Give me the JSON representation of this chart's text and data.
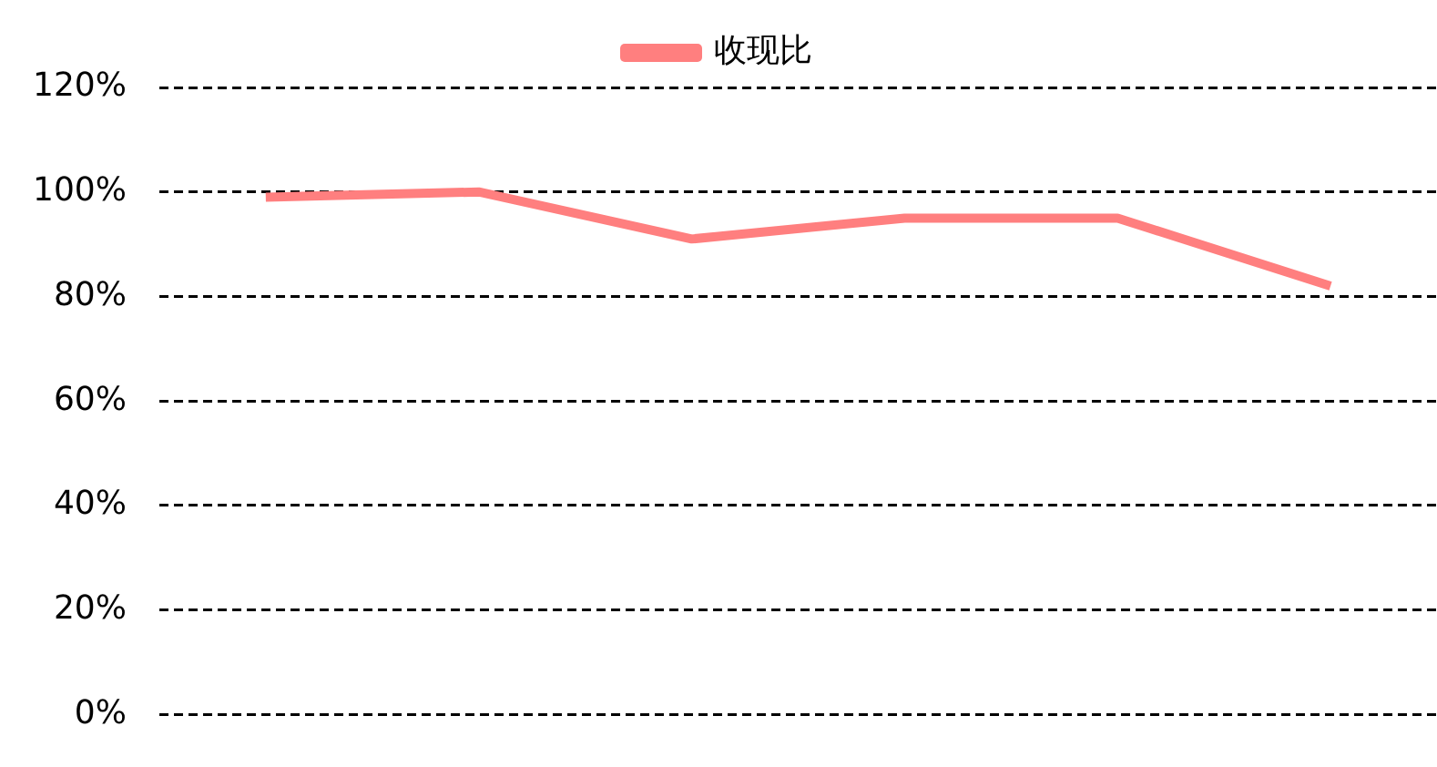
{
  "chart_data": {
    "type": "line",
    "categories": [
      null,
      null,
      null,
      null,
      null,
      null
    ],
    "series": [
      {
        "name": "收现比",
        "color": "#ff7f7f",
        "values": [
          99,
          100,
          91,
          95,
          95,
          82
        ]
      }
    ],
    "ylim": [
      0,
      120
    ],
    "yticks": [
      {
        "value": 0,
        "label": "0%"
      },
      {
        "value": 20,
        "label": "20%"
      },
      {
        "value": 40,
        "label": "40%"
      },
      {
        "value": 60,
        "label": "60%"
      },
      {
        "value": 80,
        "label": "80%"
      },
      {
        "value": 100,
        "label": "100%"
      },
      {
        "value": 120,
        "label": "120%"
      }
    ],
    "grid": "y",
    "legend": "top",
    "marker": "none",
    "line_style": "solid"
  }
}
